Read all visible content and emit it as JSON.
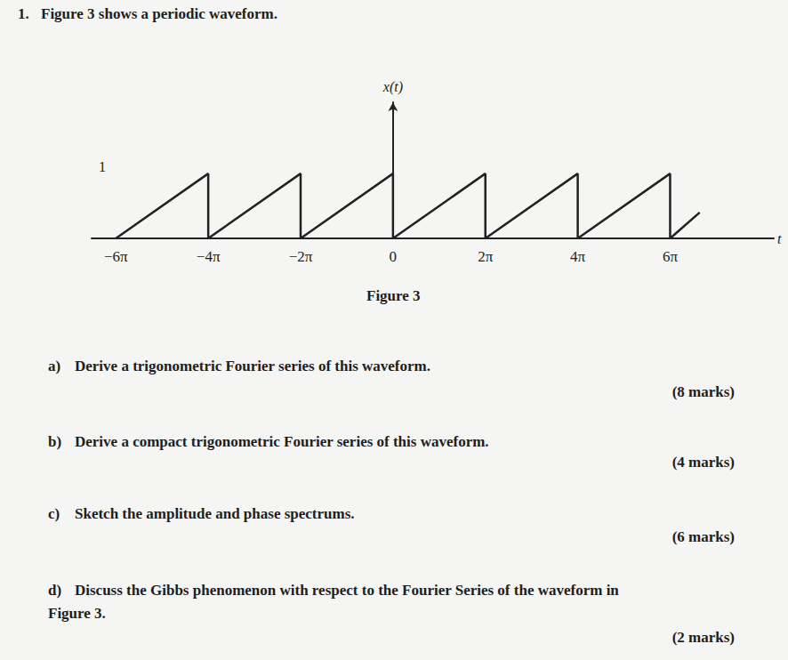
{
  "header": {
    "number": "1.",
    "text": "Figure 3 shows a periodic waveform."
  },
  "chart_data": {
    "type": "line",
    "x_label": "t",
    "y_label": "x(t)",
    "x": [
      -18.8496,
      -12.5664,
      -12.5664,
      -6.2832,
      -6.2832,
      0,
      0,
      6.2832,
      6.2832,
      12.5664,
      12.5664,
      18.8496,
      18.8496,
      20.86
    ],
    "values": [
      0,
      1,
      0,
      1,
      0,
      1,
      0,
      1,
      0,
      1,
      0,
      1,
      0,
      0.4
    ],
    "color": "#222222",
    "xlim": [
      -20.5,
      25.9
    ],
    "ylim": [
      0,
      2.1
    ],
    "xticks": [
      {
        "value": -18.8496,
        "label": "−6π"
      },
      {
        "value": -12.5664,
        "label": "−4π"
      },
      {
        "value": -6.2832,
        "label": "−2π"
      },
      0,
      {
        "value": 6.2832,
        "label": "2π"
      },
      {
        "value": 12.5664,
        "label": "4π"
      },
      {
        "value": 18.8496,
        "label": "6π"
      }
    ],
    "yticks": [
      1
    ],
    "grid": false
  },
  "figure_caption": "Figure 3",
  "questions": [
    {
      "label": "a)",
      "lines": [
        "Derive a trigonometric Fourier series of this waveform."
      ],
      "marks": "(8 marks)"
    },
    {
      "label": "b)",
      "lines": [
        "Derive a compact trigonometric Fourier series of this waveform."
      ],
      "marks": "(4 marks)"
    },
    {
      "label": "c)",
      "lines": [
        "Sketch the amplitude and phase spectrums."
      ],
      "marks": "(6 marks)"
    },
    {
      "label": "d)",
      "lines": [
        "Discuss the Gibbs phenomenon with respect to the Fourier Series of the waveform in",
        "Figure 3."
      ],
      "marks": "(2 marks)"
    }
  ]
}
